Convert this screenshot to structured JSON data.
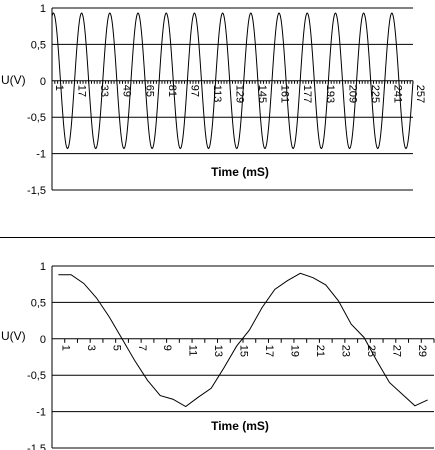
{
  "chart_data": [
    {
      "type": "line",
      "title": "",
      "xlabel": "Time (mS)",
      "ylabel": "U(V)",
      "ylim": [
        -1.5,
        1
      ],
      "yticks": [
        "1",
        "0,5",
        "0",
        "-0,5",
        "-1",
        "-1,5"
      ],
      "xticks": [
        "1",
        "17",
        "33",
        "49",
        "65",
        "81",
        "97",
        "113",
        "129",
        "145",
        "161",
        "177",
        "193",
        "209",
        "225",
        "241",
        "257"
      ],
      "grid": true,
      "x_range": [
        1,
        257
      ],
      "series": [
        {
          "period_samples": 20,
          "amplitude": 0.93,
          "phase_deg": 18
        }
      ]
    },
    {
      "type": "line",
      "title": "",
      "xlabel": "Time (mS)",
      "ylabel": "U(V)",
      "ylim": [
        -1.5,
        1
      ],
      "yticks": [
        "1",
        "0,5",
        "0",
        "-0,5",
        "-1",
        "-1,5"
      ],
      "xticks": [
        "1",
        "3",
        "5",
        "7",
        "9",
        "11",
        "13",
        "15",
        "17",
        "19",
        "21",
        "23",
        "25",
        "27",
        "29"
      ],
      "grid": true,
      "x": [
        1,
        2,
        3,
        4,
        5,
        6,
        7,
        8,
        9,
        10,
        11,
        12,
        13,
        14,
        15,
        16,
        17,
        18,
        19,
        20,
        21,
        22,
        23,
        24,
        25,
        26,
        27,
        28,
        29,
        30
      ],
      "series": [
        {
          "values": [
            0.88,
            0.88,
            0.76,
            0.56,
            0.3,
            0.0,
            -0.3,
            -0.57,
            -0.78,
            -0.83,
            -0.93,
            -0.8,
            -0.68,
            -0.4,
            -0.1,
            0.12,
            0.43,
            0.68,
            0.8,
            0.9,
            0.84,
            0.74,
            0.52,
            0.2,
            0.02,
            -0.3,
            -0.6,
            -0.76,
            -0.92,
            -0.84
          ]
        }
      ]
    }
  ]
}
